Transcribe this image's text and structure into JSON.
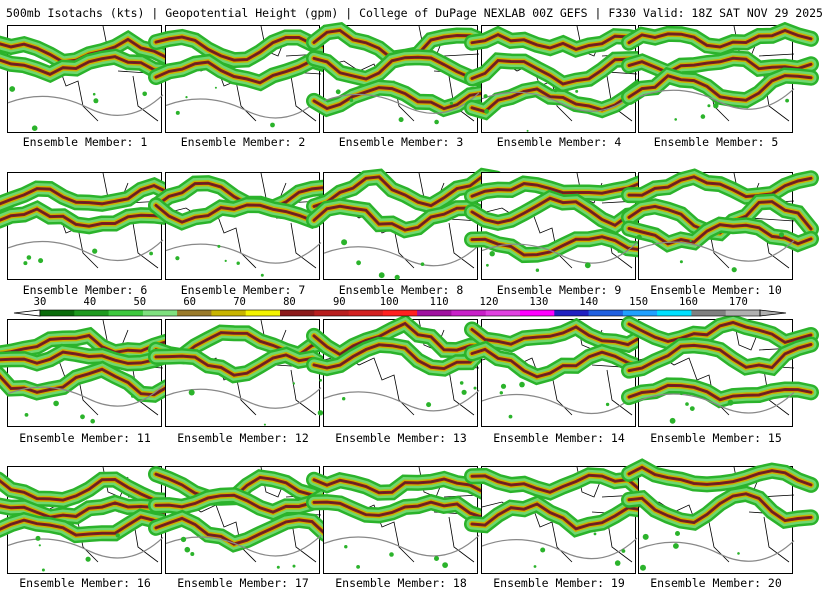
{
  "title": "500mb Isotachs (kts) | Geopotential Height (gpm) | College of DuPage NEXLAB   00Z GEFS | F330 Valid: 18Z SAT NOV 29 2025",
  "panels": [
    {
      "label": "Ensemble Member: 1"
    },
    {
      "label": "Ensemble Member: 2"
    },
    {
      "label": "Ensemble Member: 3"
    },
    {
      "label": "Ensemble Member: 4"
    },
    {
      "label": "Ensemble Member: 5"
    },
    {
      "label": "Ensemble Member: 6"
    },
    {
      "label": "Ensemble Member: 7"
    },
    {
      "label": "Ensemble Member: 8"
    },
    {
      "label": "Ensemble Member: 9"
    },
    {
      "label": "Ensemble Member: 10"
    },
    {
      "label": "Ensemble Member: 11"
    },
    {
      "label": "Ensemble Member: 12"
    },
    {
      "label": "Ensemble Member: 13"
    },
    {
      "label": "Ensemble Member: 14"
    },
    {
      "label": "Ensemble Member: 15"
    },
    {
      "label": "Ensemble Member: 16"
    },
    {
      "label": "Ensemble Member: 17"
    },
    {
      "label": "Ensemble Member: 18"
    },
    {
      "label": "Ensemble Member: 19"
    },
    {
      "label": "Ensemble Member: 20"
    }
  ],
  "colorbar": {
    "ticks": [
      "30",
      "40",
      "50",
      "60",
      "70",
      "80",
      "90",
      "100",
      "110",
      "120",
      "130",
      "140",
      "150",
      "160",
      "170"
    ],
    "colors": [
      "#0b6b0b",
      "#1f9a1f",
      "#3dc83d",
      "#7fe07f",
      "#9a7a2a",
      "#c8b400",
      "#f4f400",
      "#8b1a1a",
      "#b81e1e",
      "#d22020",
      "#ff2020",
      "#a010a0",
      "#c820c8",
      "#e040e0",
      "#ff00ff",
      "#2020c0",
      "#2060e0",
      "#20a0ff",
      "#00e0ff",
      "#808080",
      "#b0b0b0"
    ]
  }
}
